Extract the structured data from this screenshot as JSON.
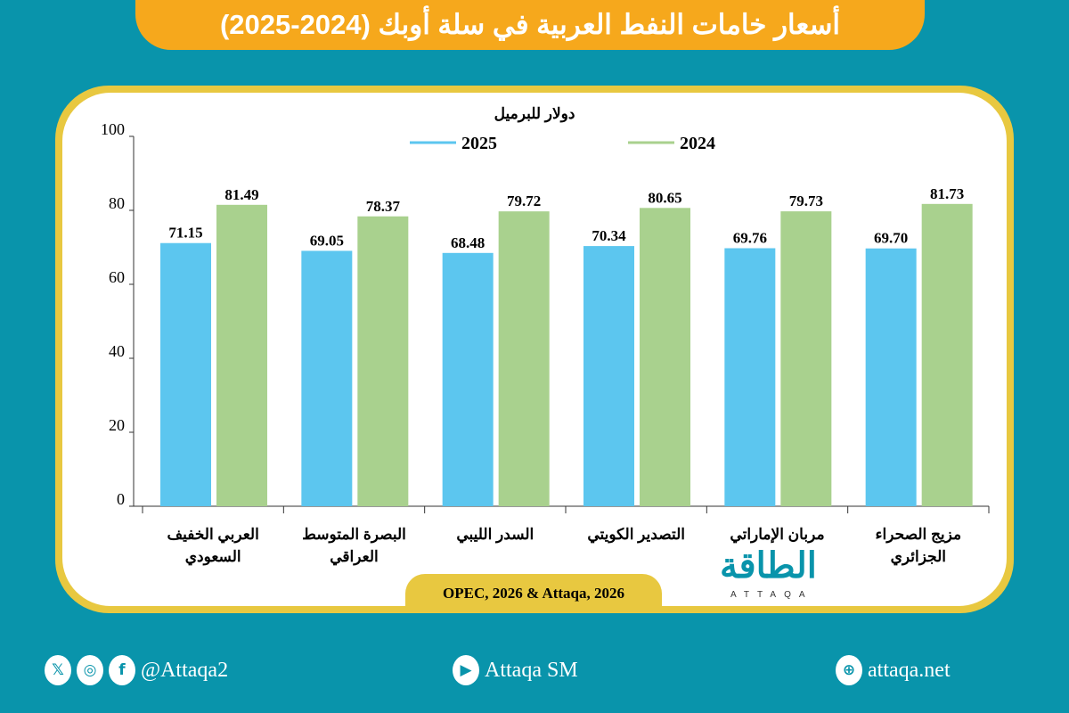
{
  "title": "أسعار خامات النفط العربية في سلة أوبك (2024-2025)",
  "source": "OPEC, 2026 & Attaqa, 2026",
  "logo": {
    "arabic": "الطاقة",
    "latin": "ATTAQA"
  },
  "footer": {
    "social_handle": "@Attaqa2",
    "youtube": "Attaqa SM",
    "website": "attaqa.net",
    "icons": [
      "x-icon",
      "instagram-icon",
      "facebook-icon",
      "youtube-icon",
      "globe-icon"
    ]
  },
  "colors": {
    "background": "#0994ab",
    "title_bar": "#f6a81c",
    "frame": "#e8c840",
    "series_2025": "#5cc6ef",
    "series_2024": "#a9d18e"
  },
  "chart_data": {
    "type": "bar",
    "ylabel": "دولار للبرميل",
    "ylim": [
      0,
      100
    ],
    "yticks": [
      0,
      20,
      40,
      60,
      80,
      100
    ],
    "grid": false,
    "legend": "top-center",
    "categories": [
      [
        "العربي الخفيف",
        "السعودي"
      ],
      [
        "البصرة المتوسط",
        "العراقي"
      ],
      [
        "السدر الليبي"
      ],
      [
        "التصدير الكويتي"
      ],
      [
        "مربان الإماراتي"
      ],
      [
        "مزيج الصحراء",
        "الجزائري"
      ]
    ],
    "series": [
      {
        "name": "2025",
        "color": "#5cc6ef",
        "values": [
          71.15,
          69.05,
          68.48,
          70.34,
          69.76,
          69.7
        ]
      },
      {
        "name": "2024",
        "color": "#a9d18e",
        "values": [
          81.49,
          78.37,
          79.72,
          80.65,
          79.73,
          81.73
        ]
      }
    ]
  }
}
